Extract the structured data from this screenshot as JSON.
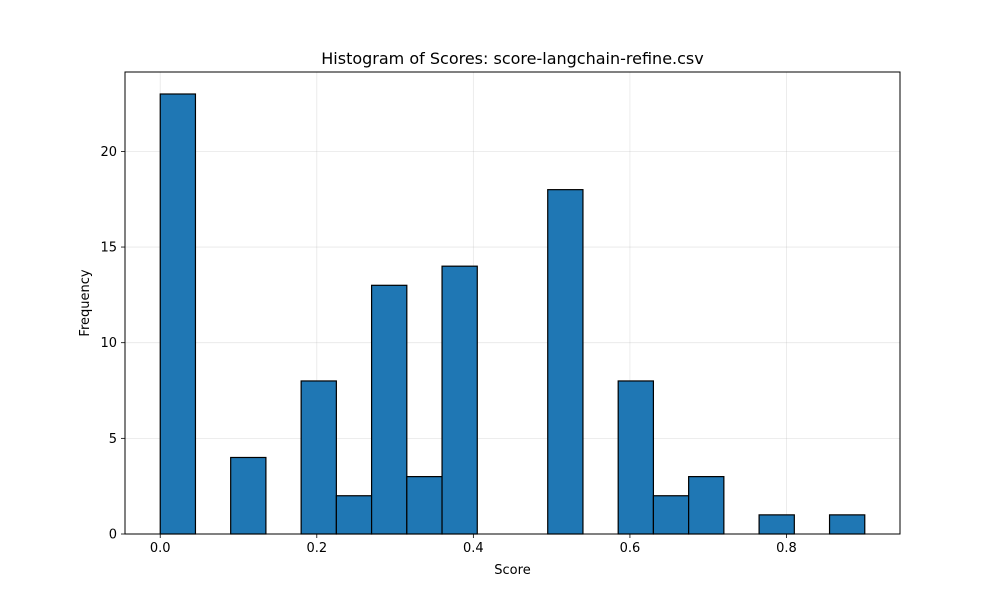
{
  "chart_data": {
    "type": "bar",
    "title": "Histogram of Scores: score-langchain-refine.csv",
    "xlabel": "Score",
    "ylabel": "Frequency",
    "xlim": [
      -0.045,
      0.945
    ],
    "ylim": [
      0,
      24.15
    ],
    "grid": true,
    "bar_color": "#1f77b4",
    "edge_color": "#000000",
    "x_ticks": [
      {
        "value": 0.0,
        "label": "0.0"
      },
      {
        "value": 0.2,
        "label": "0.2"
      },
      {
        "value": 0.4,
        "label": "0.4"
      },
      {
        "value": 0.6,
        "label": "0.6"
      },
      {
        "value": 0.8,
        "label": "0.8"
      }
    ],
    "y_ticks": [
      {
        "value": 0,
        "label": "0"
      },
      {
        "value": 5,
        "label": "5"
      },
      {
        "value": 10,
        "label": "10"
      },
      {
        "value": 15,
        "label": "15"
      },
      {
        "value": 20,
        "label": "20"
      }
    ],
    "bins": [
      {
        "x0": 0.0,
        "x1": 0.045,
        "count": 23
      },
      {
        "x0": 0.045,
        "x1": 0.09,
        "count": 0
      },
      {
        "x0": 0.09,
        "x1": 0.135,
        "count": 4
      },
      {
        "x0": 0.135,
        "x1": 0.18,
        "count": 0
      },
      {
        "x0": 0.18,
        "x1": 0.225,
        "count": 8
      },
      {
        "x0": 0.225,
        "x1": 0.27,
        "count": 2
      },
      {
        "x0": 0.27,
        "x1": 0.315,
        "count": 13
      },
      {
        "x0": 0.315,
        "x1": 0.36,
        "count": 3
      },
      {
        "x0": 0.36,
        "x1": 0.405,
        "count": 14
      },
      {
        "x0": 0.405,
        "x1": 0.45,
        "count": 0
      },
      {
        "x0": 0.45,
        "x1": 0.495,
        "count": 0
      },
      {
        "x0": 0.495,
        "x1": 0.54,
        "count": 18
      },
      {
        "x0": 0.54,
        "x1": 0.585,
        "count": 0
      },
      {
        "x0": 0.585,
        "x1": 0.63,
        "count": 8
      },
      {
        "x0": 0.63,
        "x1": 0.675,
        "count": 2
      },
      {
        "x0": 0.675,
        "x1": 0.72,
        "count": 3
      },
      {
        "x0": 0.72,
        "x1": 0.765,
        "count": 0
      },
      {
        "x0": 0.765,
        "x1": 0.81,
        "count": 1
      },
      {
        "x0": 0.81,
        "x1": 0.855,
        "count": 0
      },
      {
        "x0": 0.855,
        "x1": 0.9,
        "count": 1
      }
    ]
  }
}
